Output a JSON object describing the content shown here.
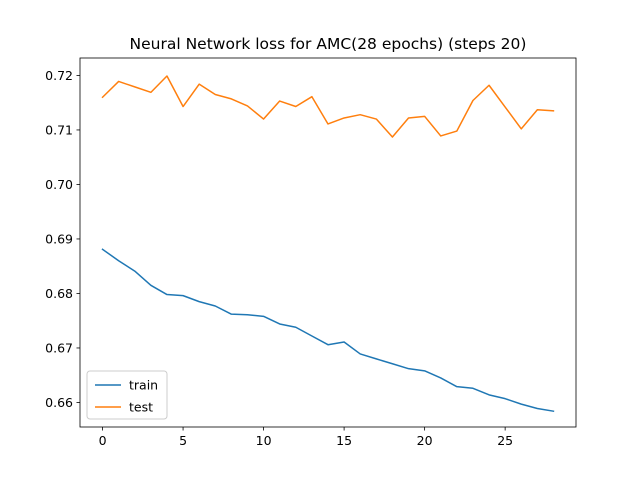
{
  "chart_data": {
    "type": "line",
    "title": "Neural Network loss for AMC(28 epochs) (steps 20)",
    "xlabel": "",
    "ylabel": "",
    "xlim": [
      -1.4,
      29.4
    ],
    "ylim": [
      0.6555,
      0.7232
    ],
    "xticks": [
      0,
      5,
      10,
      15,
      20,
      25
    ],
    "yticks": [
      0.66,
      0.67,
      0.68,
      0.69,
      0.7,
      0.71,
      0.72
    ],
    "ytick_labels": [
      "0.66",
      "0.67",
      "0.68",
      "0.69",
      "0.70",
      "0.71",
      "0.72"
    ],
    "grid": false,
    "legend_position": "lower-left",
    "x": [
      0,
      1,
      2,
      3,
      4,
      5,
      6,
      7,
      8,
      9,
      10,
      11,
      12,
      13,
      14,
      15,
      16,
      17,
      18,
      19,
      20,
      21,
      22,
      23,
      24,
      25,
      26,
      27,
      28
    ],
    "series": [
      {
        "name": "train",
        "color": "#1f77b4",
        "values": [
          0.6881,
          0.686,
          0.6841,
          0.6815,
          0.6798,
          0.6796,
          0.6785,
          0.6777,
          0.6762,
          0.6761,
          0.6758,
          0.6744,
          0.6738,
          0.6722,
          0.6706,
          0.6711,
          0.6689,
          0.668,
          0.6671,
          0.6662,
          0.6658,
          0.6645,
          0.6629,
          0.6626,
          0.6614,
          0.6607,
          0.6597,
          0.6589,
          0.6584
        ]
      },
      {
        "name": "test",
        "color": "#ff7f0e",
        "values": [
          0.716,
          0.7189,
          0.7179,
          0.7169,
          0.7199,
          0.7143,
          0.7184,
          0.7165,
          0.7157,
          0.7144,
          0.712,
          0.7153,
          0.7143,
          0.7161,
          0.7111,
          0.7122,
          0.7128,
          0.712,
          0.7087,
          0.7122,
          0.7125,
          0.7089,
          0.7098,
          0.7154,
          0.7182,
          0.7142,
          0.7102,
          0.7137,
          0.7135
        ]
      }
    ]
  }
}
